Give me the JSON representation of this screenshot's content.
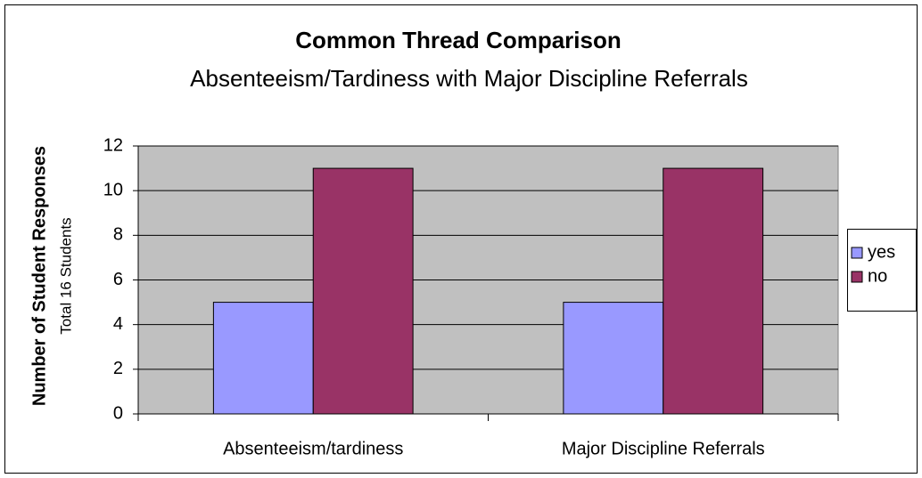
{
  "chart_data": {
    "type": "bar",
    "title": "Common Thread Comparison",
    "subtitle": "Absenteeism/Tardiness with Major Discipline Referrals",
    "y_label": "Number of Student Responses",
    "y_sublabel": "Total 16 Students",
    "categories": [
      "Absenteeism/tardiness",
      "Major Discipline Referrals"
    ],
    "series": [
      {
        "name": "yes",
        "color": "#9999ff",
        "values": [
          5,
          5
        ]
      },
      {
        "name": "no",
        "color": "#993366",
        "values": [
          11,
          11
        ]
      }
    ],
    "ylim": [
      0,
      12
    ],
    "yticks": [
      0,
      2,
      4,
      6,
      8,
      10,
      12
    ],
    "grid": true,
    "legend": "right"
  }
}
